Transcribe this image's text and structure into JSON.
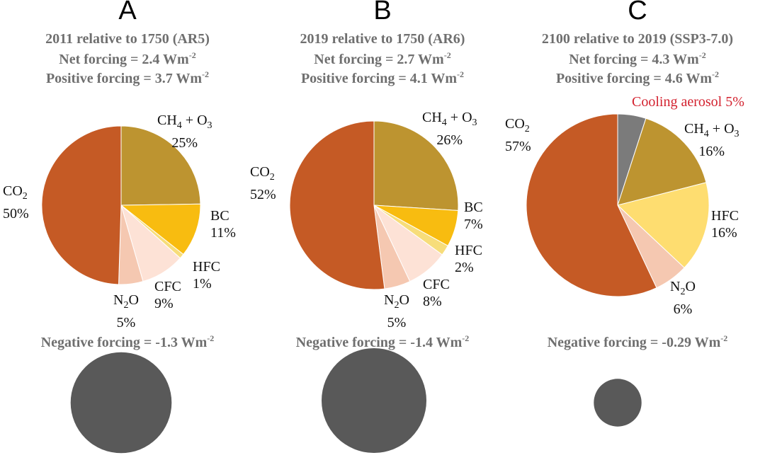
{
  "colors": {
    "CO2": "#c55a25",
    "CH4_O3": "#bd9430",
    "BC": "#f8bc10",
    "HFC_small": "#f7dd7a",
    "HFC_large": "#fedd70",
    "CFC": "#fde2d6",
    "N2O": "#f5c8b1",
    "cooling": "#7b7b7b",
    "negative": "#595959"
  },
  "panels": [
    {
      "letter": "A",
      "title": "2011 relative to 1750 (AR5)",
      "net_label": "Net forcing = 2.4 Wm",
      "positive_label": "Positive forcing = 3.7 Wm",
      "negative_label": "Negative forcing = -1.3 Wm",
      "unit_exp": "-2",
      "labels": {
        "ch4": {
          "pre": "CH",
          "s1": "4",
          "mid": " + O",
          "s2": "3",
          "pct": "25%"
        },
        "co2": {
          "pre": "CO",
          "s1": "2",
          "pct": "50%"
        },
        "bc": {
          "name": "BC",
          "pct": "11%"
        },
        "hfc": {
          "name": "HFC",
          "pct": "1%"
        },
        "cfc": {
          "name": "CFC",
          "pct": "9%"
        },
        "n2o": {
          "pre": "N",
          "s1": "2",
          "post": "O",
          "pct": "5%"
        }
      }
    },
    {
      "letter": "B",
      "title": "2019 relative to 1750 (AR6)",
      "net_label": "Net forcing = 2.7 Wm",
      "positive_label": "Positive forcing = 4.1 Wm",
      "negative_label": "Negative forcing = -1.4 Wm",
      "unit_exp": "-2",
      "labels": {
        "ch4": {
          "pre": "CH",
          "s1": "4",
          "mid": " + O",
          "s2": "3",
          "pct": "26%"
        },
        "co2": {
          "pre": "CO",
          "s1": "2",
          "pct": "52%"
        },
        "bc": {
          "name": "BC",
          "pct": "7%"
        },
        "hfc": {
          "name": "HFC",
          "pct": "2%"
        },
        "cfc": {
          "name": "CFC",
          "pct": "8%"
        },
        "n2o": {
          "pre": "N",
          "s1": "2",
          "post": "O",
          "pct": "5%"
        }
      }
    },
    {
      "letter": "C",
      "title": "2100 relative to 2019 (SSP3-7.0)",
      "net_label": "Net forcing = 4.3 Wm",
      "positive_label": "Positive forcing = 4.6 Wm",
      "negative_label": "Negative forcing = -0.29 Wm",
      "unit_exp": "-2",
      "labels": {
        "cooling": "Cooling aerosol 5%",
        "ch4": {
          "pre": "CH",
          "s1": "4",
          "mid": " + O",
          "s2": "3",
          "pct": "16%"
        },
        "co2": {
          "pre": "CO",
          "s1": "2",
          "pct": "57%"
        },
        "hfc": {
          "name": "HFC",
          "pct": "16%"
        },
        "n2o": {
          "pre": "N",
          "s1": "2",
          "post": "O",
          "pct": "6%"
        }
      }
    }
  ],
  "chart_data": [
    {
      "type": "pie",
      "title": "2011 relative to 1750 (AR5)",
      "net_forcing_Wm2": 2.4,
      "positive_forcing_Wm2": 3.7,
      "negative_forcing_Wm2": -1.3,
      "slices": [
        {
          "name": "CH4 + O3",
          "value": 25,
          "color": "#bd9430"
        },
        {
          "name": "BC",
          "value": 11,
          "color": "#f8bc10"
        },
        {
          "name": "HFC",
          "value": 1,
          "color": "#f7dd7a"
        },
        {
          "name": "CFC",
          "value": 9,
          "color": "#fde2d6"
        },
        {
          "name": "N2O",
          "value": 5,
          "color": "#f5c8b1"
        },
        {
          "name": "CO2",
          "value": 50,
          "color": "#c55a25"
        }
      ]
    },
    {
      "type": "pie",
      "title": "2019 relative to 1750 (AR6)",
      "net_forcing_Wm2": 2.7,
      "positive_forcing_Wm2": 4.1,
      "negative_forcing_Wm2": -1.4,
      "slices": [
        {
          "name": "CH4 + O3",
          "value": 26,
          "color": "#bd9430"
        },
        {
          "name": "BC",
          "value": 7,
          "color": "#f8bc10"
        },
        {
          "name": "HFC",
          "value": 2,
          "color": "#f7dd7a"
        },
        {
          "name": "CFC",
          "value": 8,
          "color": "#fde2d6"
        },
        {
          "name": "N2O",
          "value": 5,
          "color": "#f5c8b1"
        },
        {
          "name": "CO2",
          "value": 52,
          "color": "#c55a25"
        }
      ]
    },
    {
      "type": "pie",
      "title": "2100 relative to 2019 (SSP3-7.0)",
      "net_forcing_Wm2": 4.3,
      "positive_forcing_Wm2": 4.6,
      "negative_forcing_Wm2": -0.29,
      "slices": [
        {
          "name": "Cooling aerosol",
          "value": 5,
          "color": "#7b7b7b"
        },
        {
          "name": "CH4 + O3",
          "value": 16,
          "color": "#bd9430"
        },
        {
          "name": "HFC",
          "value": 16,
          "color": "#fedd70"
        },
        {
          "name": "N2O",
          "value": 6,
          "color": "#f5c8b1"
        },
        {
          "name": "CO2",
          "value": 57,
          "color": "#c55a25"
        }
      ]
    }
  ]
}
